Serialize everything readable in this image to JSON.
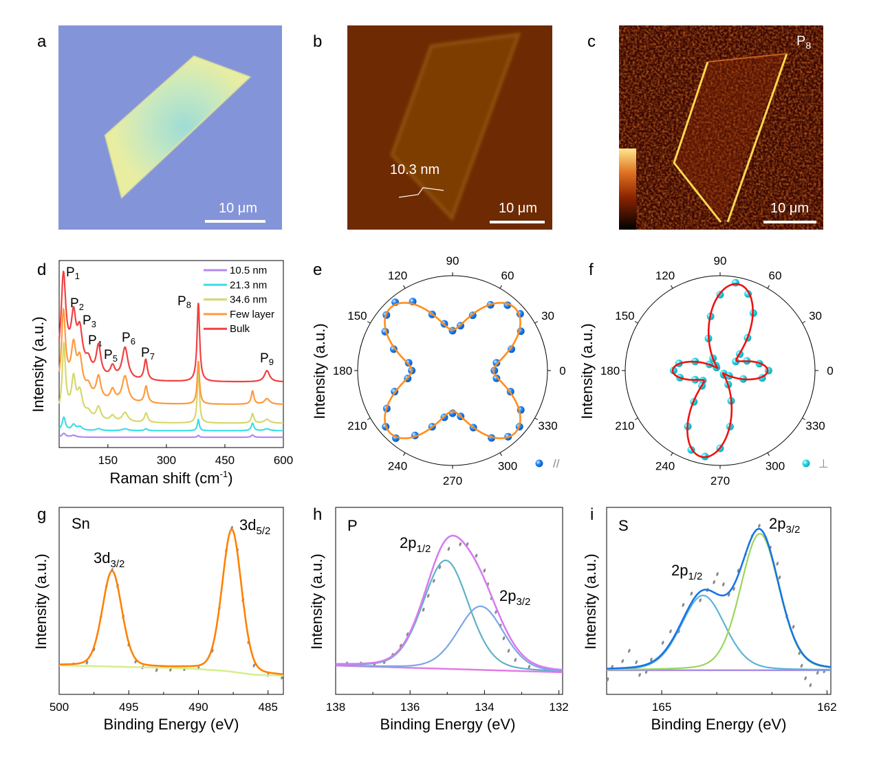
{
  "panel_a": {
    "label": "a",
    "scale_bar": "10 μm",
    "colors": {
      "substrate": "#8494d8",
      "flake_edge": "#e9eda2",
      "flake_center": "#9fdcd6"
    }
  },
  "panel_b": {
    "label": "b",
    "height_label": "10.3 nm",
    "scale_bar": "10 μm",
    "colors": {
      "substrate": "#6e2a02",
      "flake": "#7e3e05"
    }
  },
  "panel_c": {
    "label": "c",
    "map_label": {
      "base": "P",
      "sub": "8"
    },
    "scale_bar": "10 μm",
    "colormap": [
      "#000000",
      "#8b2500",
      "#e07020",
      "#ffe88a"
    ]
  },
  "chart_data": [
    {
      "panel": "d",
      "type": "line",
      "xlabel": {
        "base": "Raman shift (cm",
        "sup": "-1",
        "end": ")"
      },
      "ylabel": "Intensity (a.u.)",
      "xlim": [
        25,
        600
      ],
      "ylim": [
        0,
        100
      ],
      "xticks": [
        150,
        300,
        450,
        600
      ],
      "legend_position": "top-right",
      "series": [
        {
          "name": "10.5 nm",
          "color": "#b388f0",
          "offset": 5.5,
          "peaks": [
            [
              37,
              2,
              6
            ],
            [
              62,
              1,
              8
            ],
            [
              382,
              1,
              3
            ],
            [
              521,
              1.2,
              4
            ]
          ]
        },
        {
          "name": "21.3 nm",
          "color": "#3fdde6",
          "offset": 9,
          "peaks": [
            [
              37,
              7,
              5
            ],
            [
              62,
              3,
              6
            ],
            [
              78,
              2,
              8
            ],
            [
              126,
              1,
              8
            ],
            [
              194,
              1,
              9
            ],
            [
              248,
              1,
              5
            ],
            [
              382,
              6,
              3
            ],
            [
              521,
              4,
              4
            ],
            [
              558,
              1,
              8
            ]
          ]
        },
        {
          "name": "34.6 nm",
          "color": "#d6d86a",
          "offset": 13,
          "peaks": [
            [
              37,
              36,
              5
            ],
            [
              50,
              6,
              40
            ],
            [
              62,
              17,
              6
            ],
            [
              78,
              12,
              8
            ],
            [
              100,
              3,
              8
            ],
            [
              126,
              7,
              7
            ],
            [
              162,
              3,
              7
            ],
            [
              194,
              5,
              9
            ],
            [
              248,
              5,
              5
            ],
            [
              382,
              32,
              3
            ],
            [
              521,
              5,
              4
            ],
            [
              558,
              2,
              8
            ]
          ]
        },
        {
          "name": "Few layer",
          "color": "#ff9a3c",
          "offset": 23,
          "peaks": [
            [
              36,
              40,
              6
            ],
            [
              50,
              10,
              40
            ],
            [
              62,
              20,
              7
            ],
            [
              78,
              16,
              8
            ],
            [
              100,
              5,
              8
            ],
            [
              126,
              12,
              7
            ],
            [
              162,
              6,
              7
            ],
            [
              194,
              14,
              9
            ],
            [
              248,
              9,
              5
            ],
            [
              382,
              23,
              3.5
            ],
            [
              521,
              7,
              4
            ],
            [
              558,
              3,
              8
            ]
          ]
        },
        {
          "name": "Bulk",
          "color": "#f04040",
          "offset": 35,
          "peaks": [
            [
              36,
              46,
              7
            ],
            [
              50,
              12,
              40
            ],
            [
              62,
              22,
              7
            ],
            [
              78,
              18,
              8
            ],
            [
              100,
              6,
              8
            ],
            [
              126,
              16,
              7
            ],
            [
              162,
              6,
              7
            ],
            [
              194,
              17,
              9
            ],
            [
              247,
              11,
              5
            ],
            [
              382,
              42,
              4
            ],
            [
              558,
              6,
              8
            ]
          ]
        }
      ],
      "peak_labels": [
        {
          "base": "P",
          "sub": "1"
        },
        {
          "base": "P",
          "sub": "2"
        },
        {
          "base": "P",
          "sub": "3"
        },
        {
          "base": "P",
          "sub": "4"
        },
        {
          "base": "P",
          "sub": "5"
        },
        {
          "base": "P",
          "sub": "6"
        },
        {
          "base": "P",
          "sub": "7"
        },
        {
          "base": "P",
          "sub": "8"
        },
        {
          "base": "P",
          "sub": "9"
        }
      ]
    },
    {
      "panel": "e",
      "type": "scatter",
      "projection": "polar",
      "ylabel": "Intensity (a.u.)",
      "angle_ticks": [
        0,
        30,
        60,
        90,
        120,
        150,
        180,
        210,
        240,
        270,
        300,
        330
      ],
      "legend": {
        "symbol": "//"
      },
      "colors": {
        "points": "#1e88ff",
        "fit": "#ff8c1a"
      },
      "points": [
        [
          0,
          0.44
        ],
        [
          10,
          0.47
        ],
        [
          20,
          0.66
        ],
        [
          30,
          0.83
        ],
        [
          40,
          0.93
        ],
        [
          50,
          0.9
        ],
        [
          60,
          0.8
        ],
        [
          70,
          0.62
        ],
        [
          80,
          0.48
        ],
        [
          90,
          0.42
        ],
        [
          100,
          0.5
        ],
        [
          110,
          0.63
        ],
        [
          120,
          0.84
        ],
        [
          130,
          0.94
        ],
        [
          140,
          0.91
        ],
        [
          150,
          0.82
        ],
        [
          160,
          0.66
        ],
        [
          170,
          0.47
        ],
        [
          180,
          0.43
        ],
        [
          190,
          0.48
        ],
        [
          200,
          0.65
        ],
        [
          210,
          0.8
        ],
        [
          220,
          0.92
        ],
        [
          230,
          0.93
        ],
        [
          240,
          0.79
        ],
        [
          250,
          0.63
        ],
        [
          260,
          0.5
        ],
        [
          270,
          0.45
        ],
        [
          280,
          0.49
        ],
        [
          290,
          0.64
        ],
        [
          300,
          0.82
        ],
        [
          310,
          0.91
        ],
        [
          320,
          0.92
        ],
        [
          330,
          0.83
        ],
        [
          340,
          0.65
        ],
        [
          350,
          0.47
        ]
      ]
    },
    {
      "panel": "f",
      "type": "scatter",
      "projection": "polar",
      "ylabel": "Intensity (a.u.)",
      "angle_ticks": [
        0,
        30,
        60,
        90,
        120,
        150,
        180,
        210,
        240,
        270,
        300,
        330
      ],
      "legend": {
        "symbol": "⊥"
      },
      "colors": {
        "points": "#27dcec",
        "fit": "#ee1111"
      },
      "points": [
        [
          0,
          0.51
        ],
        [
          10,
          0.42
        ],
        [
          20,
          0.3
        ],
        [
          30,
          0.19
        ],
        [
          40,
          0.27
        ],
        [
          50,
          0.45
        ],
        [
          60,
          0.7
        ],
        [
          70,
          0.86
        ],
        [
          80,
          0.94
        ],
        [
          90,
          0.8
        ],
        [
          100,
          0.58
        ],
        [
          110,
          0.36
        ],
        [
          120,
          0.15
        ],
        [
          130,
          0.07
        ],
        [
          140,
          0.05
        ],
        [
          150,
          0.13
        ],
        [
          160,
          0.28
        ],
        [
          170,
          0.44
        ],
        [
          180,
          0.49
        ],
        [
          190,
          0.43
        ],
        [
          200,
          0.28
        ],
        [
          210,
          0.21
        ],
        [
          220,
          0.25
        ],
        [
          230,
          0.43
        ],
        [
          240,
          0.68
        ],
        [
          250,
          0.89
        ],
        [
          260,
          0.92
        ],
        [
          270,
          0.82
        ],
        [
          280,
          0.6
        ],
        [
          290,
          0.34
        ],
        [
          300,
          0.17
        ],
        [
          310,
          0.06
        ],
        [
          320,
          0.05
        ],
        [
          330,
          0.11
        ],
        [
          340,
          0.26
        ],
        [
          350,
          0.45
        ]
      ]
    },
    {
      "panel": "g",
      "type": "line",
      "element": "Sn",
      "xlabel": "Binding Energy (eV)",
      "ylabel": "Intensity (a.u.)",
      "xlim": [
        500,
        483.9
      ],
      "ylim": [
        0,
        100
      ],
      "xticks": [
        500,
        495,
        490,
        485
      ],
      "minor_step": 2.5,
      "colors": {
        "envelope": "#ff8000",
        "background": "#d5ee8c",
        "data": "#8a8a8a"
      },
      "peaks": [
        {
          "label": {
            "base": "3d",
            "sub": "3/2"
          },
          "center": 496.2,
          "height": 51,
          "fwhm": 1.65
        },
        {
          "label": {
            "base": "3d",
            "sub": "5/2"
          },
          "center": 487.6,
          "height": 76,
          "fwhm": 1.65
        }
      ],
      "background": [
        [
          500,
          15.5
        ],
        [
          491,
          14
        ],
        [
          488,
          12.5
        ],
        [
          486,
          10.5
        ],
        [
          483.9,
          10
        ]
      ],
      "data": [
        [
          499,
          16
        ],
        [
          498,
          17
        ],
        [
          497.5,
          24
        ],
        [
          497,
          41.5
        ],
        [
          496.6,
          58
        ],
        [
          496.2,
          66.5
        ],
        [
          495.8,
          58
        ],
        [
          495.4,
          41.5
        ],
        [
          495,
          26.7
        ],
        [
          494.5,
          17.6
        ],
        [
          494,
          14.5
        ],
        [
          493,
          13
        ],
        [
          492,
          13.2
        ],
        [
          491,
          13.5
        ],
        [
          490,
          14
        ],
        [
          489,
          23.3
        ],
        [
          488.5,
          46
        ],
        [
          488,
          77
        ],
        [
          487.6,
          89
        ],
        [
          487.2,
          77
        ],
        [
          486.8,
          50.5
        ],
        [
          486.4,
          28
        ],
        [
          486,
          15.5
        ],
        [
          485,
          10.5
        ],
        [
          484,
          9
        ]
      ],
      "show_components": false
    },
    {
      "panel": "h",
      "type": "line",
      "element": "P",
      "xlabel": "Binding Energy (eV)",
      "ylabel": "Intensity (a.u.)",
      "xlim": [
        138,
        131.9
      ],
      "ylim": [
        0,
        100
      ],
      "xticks": [
        138,
        136,
        134,
        132
      ],
      "minor_step": 1,
      "colors": {
        "envelope": "#d77cf0",
        "background": "#e27be6",
        "data": "#8a8a8a",
        "components": [
          "#5fb0c8",
          "#7aa6e8"
        ]
      },
      "peaks": [
        {
          "label": {
            "base": "2p",
            "sub": "1/2"
          },
          "center": 135.04,
          "height": 58,
          "fwhm": 1.45
        },
        {
          "label": {
            "base": "2p",
            "sub": "3/2"
          },
          "center": 134.1,
          "height": 34,
          "fwhm": 1.45
        }
      ],
      "background": [
        [
          138,
          15.4
        ],
        [
          131.9,
          11.8
        ]
      ],
      "data": [
        [
          137.7,
          16.5
        ],
        [
          137.33,
          16.5
        ],
        [
          136.96,
          15.7
        ],
        [
          136.69,
          17.2
        ],
        [
          136.47,
          21.1
        ],
        [
          136.25,
          26
        ],
        [
          136.07,
          32.1
        ],
        [
          135.85,
          39.2
        ],
        [
          135.64,
          45.3
        ],
        [
          135.51,
          52.7
        ],
        [
          135.36,
          60.7
        ],
        [
          135.2,
          68
        ],
        [
          134.96,
          77.8
        ],
        [
          134.65,
          80.3
        ],
        [
          134.46,
          80.3
        ],
        [
          134.22,
          74.1
        ],
        [
          134.0,
          66.2
        ],
        [
          133.91,
          58.8
        ],
        [
          133.81,
          51.5
        ],
        [
          133.69,
          44.1
        ],
        [
          133.57,
          36.8
        ],
        [
          133.48,
          30
        ],
        [
          133.35,
          23.3
        ],
        [
          133.17,
          18.4
        ],
        [
          132.8,
          14.7
        ]
      ],
      "show_components": true
    },
    {
      "panel": "i",
      "type": "line",
      "element": "S",
      "xlabel": "Binding Energy (eV)",
      "ylabel": "Intensity (a.u.)",
      "xlim": [
        166,
        161.93
      ],
      "ylim": [
        0,
        100
      ],
      "xticks": [
        165,
        162
      ],
      "minor_step": 1,
      "colors": {
        "envelope": "#1a73e8",
        "background": "#a78be8",
        "data": "#8a8a8a",
        "components": [
          "#5ab4d6",
          "#9ad65a"
        ]
      },
      "peaks": [
        {
          "label": {
            "base": "2p",
            "sub": "1/2"
          },
          "center": 164.25,
          "height": 40,
          "fwhm": 0.94
        },
        {
          "label": {
            "base": "2p",
            "sub": "3/2"
          },
          "center": 163.22,
          "height": 73,
          "fwhm": 0.83
        }
      ],
      "background": [
        [
          166,
          12.9
        ],
        [
          161.93,
          12.9
        ]
      ],
      "data": [
        [
          165.98,
          8.0
        ],
        [
          165.9,
          14.7
        ],
        [
          165.71,
          17.8
        ],
        [
          165.59,
          23.3
        ],
        [
          165.46,
          17.2
        ],
        [
          165.4,
          10.4
        ],
        [
          165.28,
          12.0
        ],
        [
          165.19,
          18.6
        ],
        [
          164.98,
          27.6
        ],
        [
          164.84,
          33.7
        ],
        [
          164.69,
          33.7
        ],
        [
          164.61,
          47.8
        ],
        [
          164.46,
          53.9
        ],
        [
          164.3,
          50.3
        ],
        [
          164.17,
          55.8
        ],
        [
          164.05,
          60.0
        ],
        [
          163.99,
          64.3
        ],
        [
          163.88,
          58.8
        ],
        [
          163.78,
          53.3
        ],
        [
          163.69,
          56.4
        ],
        [
          163.61,
          66.2
        ],
        [
          163.48,
          74.8
        ],
        [
          163.36,
          84.6
        ],
        [
          163.23,
          90.1
        ],
        [
          163.11,
          83.3
        ],
        [
          163.03,
          78.4
        ],
        [
          162.9,
          69.9
        ],
        [
          162.86,
          62.5
        ],
        [
          162.73,
          41.7
        ],
        [
          162.61,
          36.1
        ],
        [
          162.5,
          22.1
        ],
        [
          162.46,
          15.3
        ],
        [
          162.39,
          8.6
        ],
        [
          162.3,
          4.9
        ],
        [
          162.17,
          11.6
        ],
        [
          162.05,
          12.3
        ]
      ],
      "show_components": true
    }
  ]
}
